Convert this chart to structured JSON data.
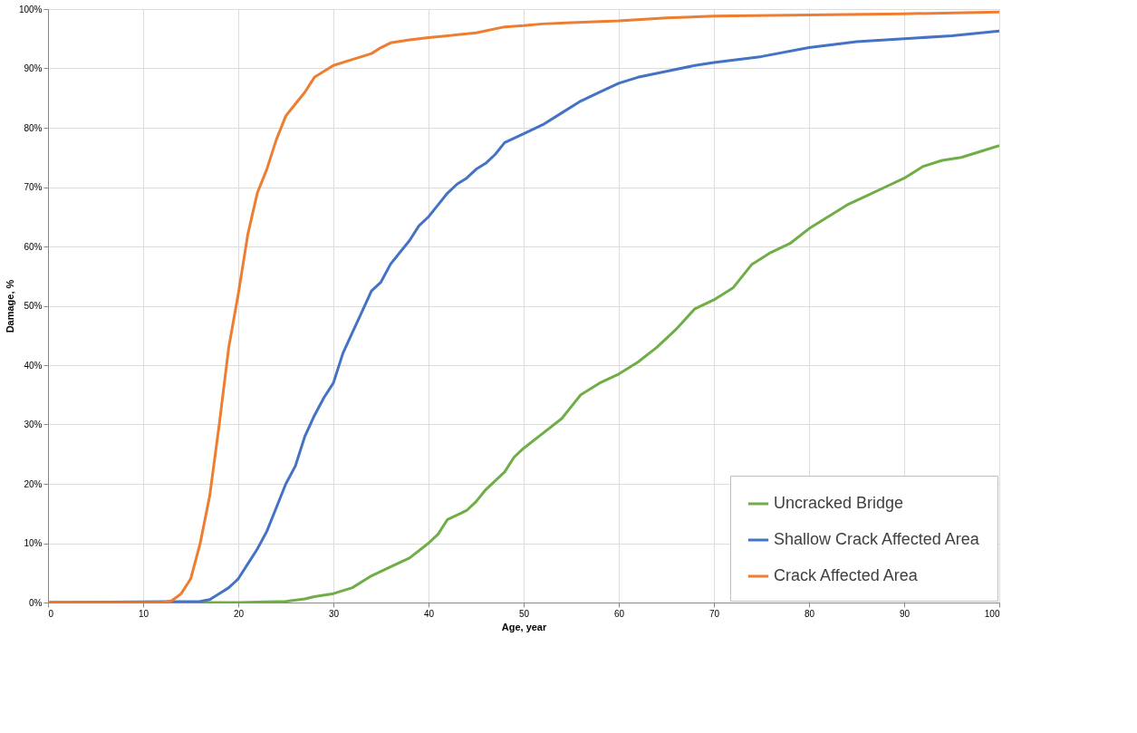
{
  "chart_data": {
    "type": "line",
    "xlabel": "Age, year",
    "ylabel": "Damage, %",
    "xlim": [
      0,
      100
    ],
    "xticks": [
      0,
      10,
      20,
      30,
      40,
      50,
      60,
      70,
      80,
      90,
      100
    ],
    "ylim": [
      0,
      100
    ],
    "yticks": [
      {
        "value": 0,
        "label": "0%"
      },
      {
        "value": 10,
        "label": "10%"
      },
      {
        "value": 20,
        "label": "20%"
      },
      {
        "value": 30,
        "label": "30%"
      },
      {
        "value": 40,
        "label": "40%"
      },
      {
        "value": 50,
        "label": "50%"
      },
      {
        "value": 60,
        "label": "60%"
      },
      {
        "value": 70,
        "label": "70%"
      },
      {
        "value": 80,
        "label": "80%"
      },
      {
        "value": 90,
        "label": "90%"
      },
      {
        "value": 100,
        "label": "100%"
      }
    ],
    "grid": true,
    "legend": "bottom right",
    "marker": "none",
    "line_style": "solid",
    "series": [
      {
        "name": "Uncracked Bridge",
        "color": "#70ad47",
        "x": [
          0,
          20,
          25,
          27,
          28,
          30,
          32,
          34,
          36,
          38,
          40,
          41,
          42,
          44,
          45,
          46,
          48,
          49,
          50,
          52,
          54,
          55,
          56,
          58,
          60,
          62,
          64,
          66,
          68,
          70,
          72,
          74,
          76,
          78,
          80,
          82,
          84,
          86,
          88,
          90,
          92,
          94,
          96,
          98,
          100
        ],
        "values": [
          0,
          0,
          0.2,
          0.6,
          1,
          1.5,
          2.5,
          4.5,
          6,
          7.5,
          10,
          11.5,
          14,
          15.5,
          17,
          19,
          22,
          24.5,
          26,
          28.5,
          31,
          33,
          35,
          37,
          38.5,
          40.5,
          43,
          46,
          49.5,
          51,
          53,
          57,
          59,
          60.5,
          63,
          65,
          67,
          68.5,
          70,
          71.5,
          73.5,
          74.5,
          75,
          76,
          77
        ]
      },
      {
        "name": "Shallow Crack Affected Area",
        "color": "#4472c4",
        "x": [
          0,
          16,
          17,
          18,
          19,
          20,
          21,
          22,
          23,
          24,
          25,
          26,
          27,
          28,
          29,
          30,
          31,
          32,
          33,
          34,
          35,
          36,
          37,
          38,
          39,
          40,
          41,
          42,
          43,
          44,
          45,
          46,
          47,
          48,
          50,
          52,
          54,
          56,
          58,
          60,
          62,
          65,
          68,
          70,
          75,
          80,
          85,
          90,
          95,
          100
        ],
        "values": [
          0,
          0.2,
          0.5,
          1.5,
          2.5,
          4,
          6.5,
          9,
          12,
          16,
          20,
          23,
          28,
          31.5,
          34.5,
          37,
          42,
          45.5,
          49,
          52.5,
          54,
          57,
          59,
          61,
          63.5,
          65,
          67,
          69,
          70.5,
          71.5,
          73,
          74,
          75.5,
          77.5,
          79,
          80.5,
          82.5,
          84.5,
          86,
          87.5,
          88.5,
          89.5,
          90.5,
          91,
          92,
          93.5,
          94.5,
          95,
          95.5,
          96.3
        ]
      },
      {
        "name": "Crack Affected Area",
        "color": "#ed7d31",
        "x": [
          0,
          12,
          13,
          14,
          15,
          16,
          17,
          18,
          19,
          20,
          21,
          22,
          23,
          24,
          25,
          26,
          27,
          28,
          29,
          30,
          32,
          34,
          35,
          36,
          38,
          40,
          42,
          45,
          48,
          50,
          52,
          55,
          60,
          65,
          70,
          80,
          90,
          100
        ],
        "values": [
          0,
          0,
          0.3,
          1.5,
          4,
          10,
          18,
          30,
          43,
          52,
          62,
          69,
          73,
          78,
          82,
          84,
          86,
          88.5,
          89.5,
          90.5,
          91.5,
          92.5,
          93.5,
          94.3,
          94.8,
          95.2,
          95.5,
          96,
          97,
          97.2,
          97.5,
          97.7,
          98,
          98.5,
          98.8,
          99,
          99.2,
          99.5
        ]
      }
    ]
  }
}
